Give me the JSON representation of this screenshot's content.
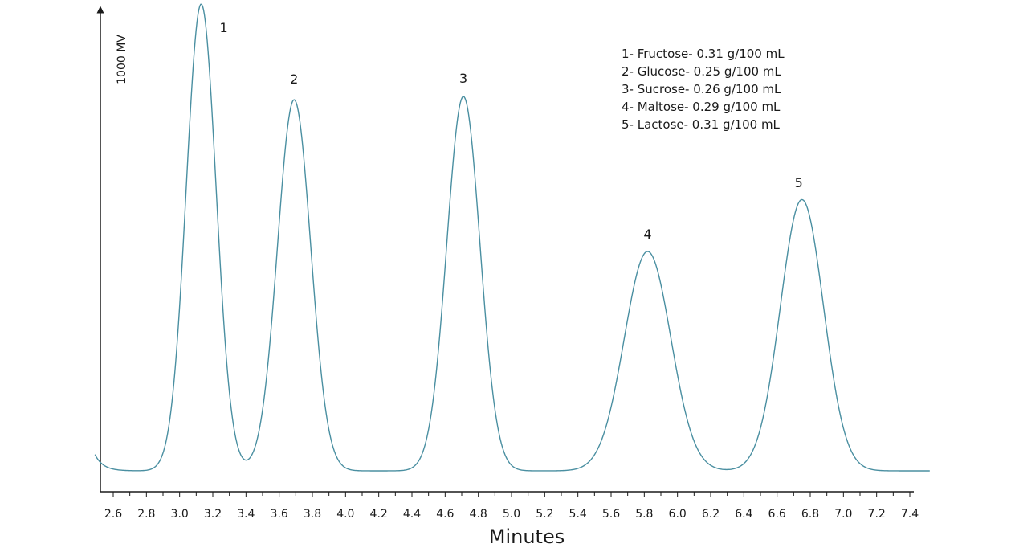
{
  "chart_data": {
    "type": "line",
    "title": "",
    "xlabel": "Minutes",
    "ylabel": "1000 MV",
    "xlim": [
      2.5,
      7.5
    ],
    "ylim": [
      0,
      1
    ],
    "grid": false,
    "x_ticks": [
      "2.6",
      "2.8",
      "3.0",
      "3.2",
      "3.4",
      "3.6",
      "3.8",
      "4.0",
      "4.2",
      "4.4",
      "4.6",
      "4.8",
      "5.0",
      "5.2",
      "5.4",
      "5.6",
      "5.8",
      "6.0",
      "6.2",
      "6.4",
      "6.6",
      "6.8",
      "7.0",
      "7.2",
      "7.4"
    ],
    "line_color": "#4a8fa1",
    "baseline": 0.05,
    "peaks": [
      {
        "label": "1",
        "x": 3.13,
        "height": 1.0
      },
      {
        "label": "2",
        "x": 3.69,
        "height": 0.795
      },
      {
        "label": "3",
        "x": 4.71,
        "height": 0.802
      },
      {
        "label": "4",
        "x": 5.82,
        "height": 0.47
      },
      {
        "label": "5",
        "x": 6.75,
        "height": 0.581
      }
    ],
    "legend_position": "top-right",
    "legend": [
      "1- Fructose- 0.31 g/100 mL",
      "2- Glucose- 0.25 g/100 mL",
      "3- Sucrose- 0.26 g/100 mL",
      "4- Maltose- 0.29 g/100 mL",
      "5- Lactose- 0.31 g/100 mL"
    ]
  }
}
